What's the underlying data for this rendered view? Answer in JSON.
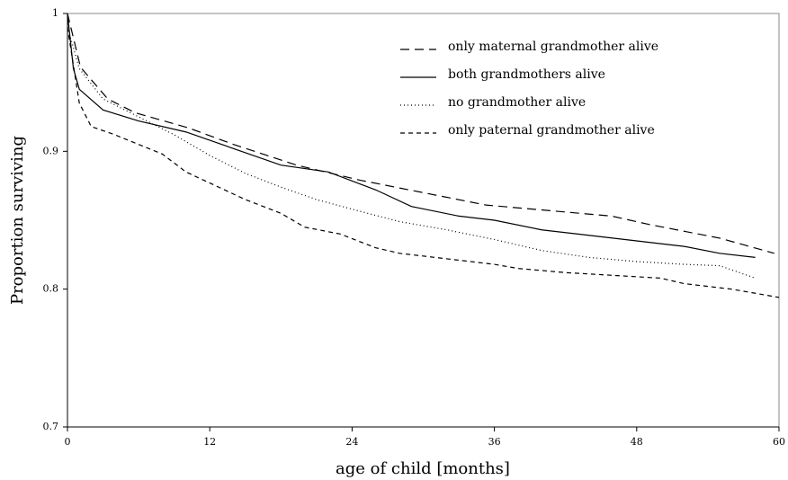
{
  "chart_data": {
    "type": "line",
    "xlabel": "age of child [months]",
    "ylabel": "Proportion surviving",
    "xlim": [
      0,
      60
    ],
    "ylim": [
      0.7,
      1
    ],
    "xticks": [
      0,
      12,
      24,
      36,
      48,
      60
    ],
    "yticks": [
      0.7,
      0.8,
      0.9,
      1
    ],
    "legend": "upper right",
    "series": [
      {
        "name": "only maternal grandmother alive",
        "color": "#000000",
        "dash": "10,6",
        "x": [
          0,
          1.1,
          3.4,
          5.7,
          10.2,
          14,
          19.3,
          24.7,
          30,
          35.3,
          40.6,
          45.9,
          49,
          55,
          59.6
        ],
        "values": [
          1,
          0.961,
          0.938,
          0.928,
          0.917,
          0.905,
          0.89,
          0.879,
          0.87,
          0.861,
          0.857,
          0.853,
          0.847,
          0.837,
          0.826
        ]
      },
      {
        "name": "both grandmothers alive",
        "color": "#000000",
        "dash": "none",
        "x": [
          0,
          0.5,
          1,
          3,
          6,
          10,
          14,
          18,
          22,
          26,
          29,
          33,
          36,
          40,
          45,
          48,
          52,
          55,
          58
        ],
        "values": [
          1,
          0.96,
          0.945,
          0.93,
          0.922,
          0.914,
          0.902,
          0.89,
          0.885,
          0.872,
          0.86,
          0.853,
          0.85,
          0.843,
          0.838,
          0.835,
          0.831,
          0.826,
          0.823
        ]
      },
      {
        "name": "no grandmother alive",
        "color": "#000000",
        "dash": "1,3",
        "x": [
          0,
          1,
          3,
          6,
          9,
          12,
          15,
          18,
          21,
          24,
          28,
          32,
          36,
          40,
          44,
          48,
          52,
          55,
          58
        ],
        "values": [
          0.99,
          0.96,
          0.938,
          0.925,
          0.912,
          0.897,
          0.884,
          0.874,
          0.865,
          0.858,
          0.849,
          0.843,
          0.836,
          0.828,
          0.823,
          0.82,
          0.818,
          0.817,
          0.808
        ]
      },
      {
        "name": "only paternal grandmother alive",
        "color": "#000000",
        "dash": "5,4",
        "x": [
          0,
          1,
          2,
          4,
          6,
          8,
          10,
          12,
          15,
          18,
          20,
          23,
          26,
          28,
          32,
          36,
          38,
          42,
          46,
          50,
          52,
          56,
          60
        ],
        "values": [
          0.99,
          0.935,
          0.918,
          0.912,
          0.905,
          0.898,
          0.885,
          0.877,
          0.865,
          0.855,
          0.845,
          0.84,
          0.83,
          0.826,
          0.822,
          0.818,
          0.815,
          0.812,
          0.81,
          0.808,
          0.804,
          0.8,
          0.794
        ]
      }
    ]
  }
}
